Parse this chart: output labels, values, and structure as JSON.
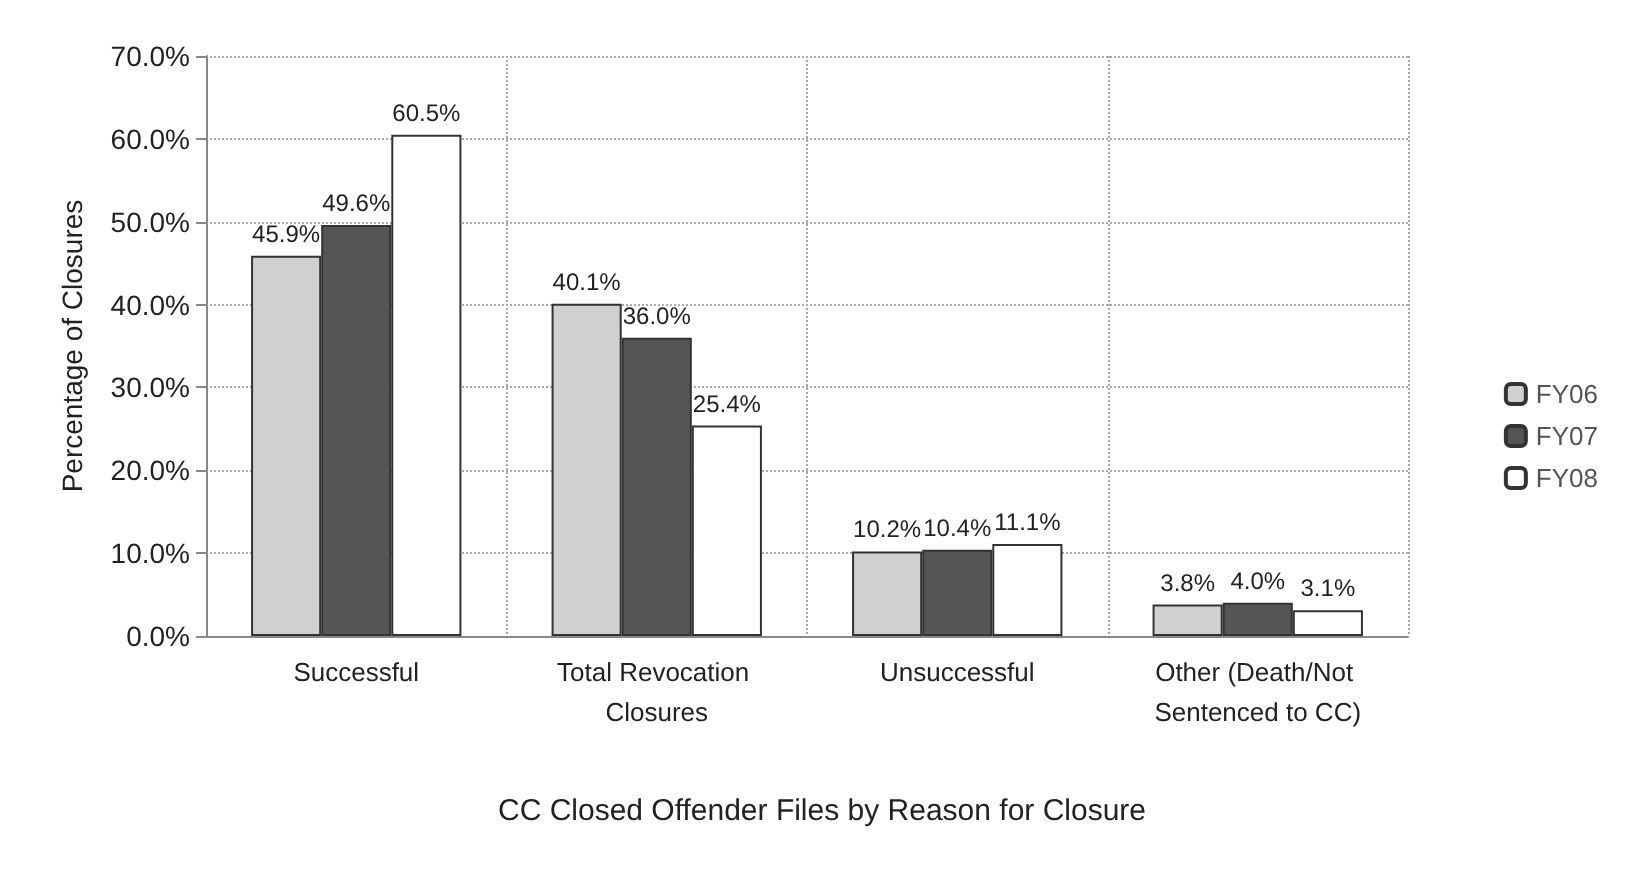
{
  "chart_data": {
    "type": "bar",
    "title": "CC Closed Offender Files by Reason for Closure",
    "ylabel": "Percentage of Closures",
    "categories": [
      "Successful",
      "Total Revocation Closures",
      "Unsuccessful",
      "Other (Death/Not Sentenced to CC)"
    ],
    "series": [
      {
        "name": "FY06",
        "color": "#d0d0d0",
        "values": [
          45.9,
          40.1,
          10.2,
          3.8
        ],
        "value_labels": [
          "45.9%",
          "40.1%",
          "10.2%",
          "3.8%"
        ]
      },
      {
        "name": "FY07",
        "color": "#555555",
        "values": [
          49.6,
          36.0,
          10.4,
          4.0
        ],
        "value_labels": [
          "49.6%",
          "36.0%",
          "10.4%",
          "4.0%"
        ]
      },
      {
        "name": "FY08",
        "color": "#ffffff",
        "values": [
          60.5,
          25.4,
          11.1,
          3.1
        ],
        "value_labels": [
          "60.5%",
          "25.4%",
          "11.1%",
          "3.1%"
        ]
      }
    ],
    "ylim": [
      0,
      70
    ],
    "yticks": [
      {
        "value": 0,
        "label": "0.0%"
      },
      {
        "value": 10,
        "label": "10.0%"
      },
      {
        "value": 20,
        "label": "20.0%"
      },
      {
        "value": 30,
        "label": "30.0%"
      },
      {
        "value": 40,
        "label": "40.0%"
      },
      {
        "value": 50,
        "label": "50.0%"
      },
      {
        "value": 60,
        "label": "60.0%"
      },
      {
        "value": 70,
        "label": "70.0%"
      }
    ],
    "grid": true,
    "legend": "right"
  }
}
